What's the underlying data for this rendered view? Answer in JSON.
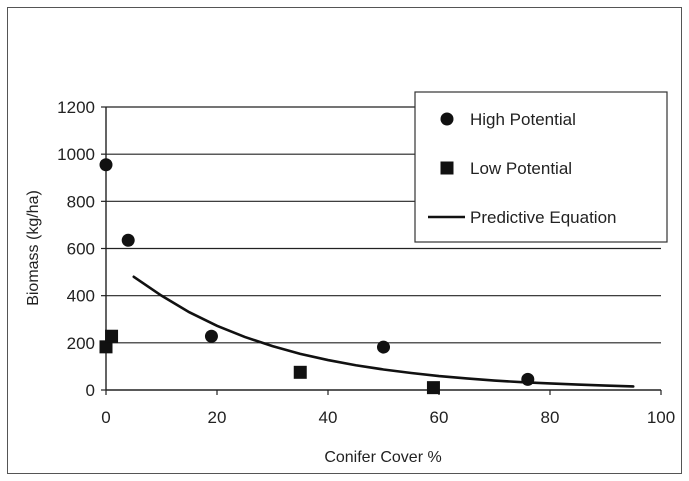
{
  "chart_data": {
    "type": "scatter",
    "xlabel": "Conifer Cover %",
    "ylabel": "Biomass (kg/ha)",
    "xlim": [
      0,
      100
    ],
    "ylim": [
      0,
      1200
    ],
    "xticks": [
      "0",
      "20",
      "40",
      "60",
      "80",
      "100"
    ],
    "yticks": [
      "0",
      "200",
      "400",
      "600",
      "800",
      "1000",
      "1200"
    ],
    "grid": "horizontal",
    "legend_position": "top-right",
    "series": [
      {
        "name": "High Potential",
        "marker": "circle",
        "color": "#111111",
        "points": [
          {
            "x": 0,
            "y": 955
          },
          {
            "x": 4,
            "y": 635
          },
          {
            "x": 19,
            "y": 228
          },
          {
            "x": 50,
            "y": 182
          },
          {
            "x": 76,
            "y": 45
          }
        ]
      },
      {
        "name": "Low Potential",
        "marker": "square",
        "color": "#111111",
        "points": [
          {
            "x": 0,
            "y": 183
          },
          {
            "x": 1,
            "y": 228
          },
          {
            "x": 35,
            "y": 75
          },
          {
            "x": 59,
            "y": 10
          }
        ]
      },
      {
        "name": "Predictive Equation",
        "marker": "line",
        "color": "#111111",
        "points": [
          {
            "x": 5,
            "y": 480
          },
          {
            "x": 10,
            "y": 400
          },
          {
            "x": 15,
            "y": 330
          },
          {
            "x": 20,
            "y": 272
          },
          {
            "x": 25,
            "y": 225
          },
          {
            "x": 30,
            "y": 186
          },
          {
            "x": 35,
            "y": 153
          },
          {
            "x": 40,
            "y": 127
          },
          {
            "x": 45,
            "y": 105
          },
          {
            "x": 50,
            "y": 87
          },
          {
            "x": 55,
            "y": 72
          },
          {
            "x": 60,
            "y": 59
          },
          {
            "x": 65,
            "y": 49
          },
          {
            "x": 70,
            "y": 40
          },
          {
            "x": 75,
            "y": 33
          },
          {
            "x": 80,
            "y": 28
          },
          {
            "x": 85,
            "y": 23
          },
          {
            "x": 90,
            "y": 19
          },
          {
            "x": 95,
            "y": 15
          }
        ]
      }
    ]
  }
}
